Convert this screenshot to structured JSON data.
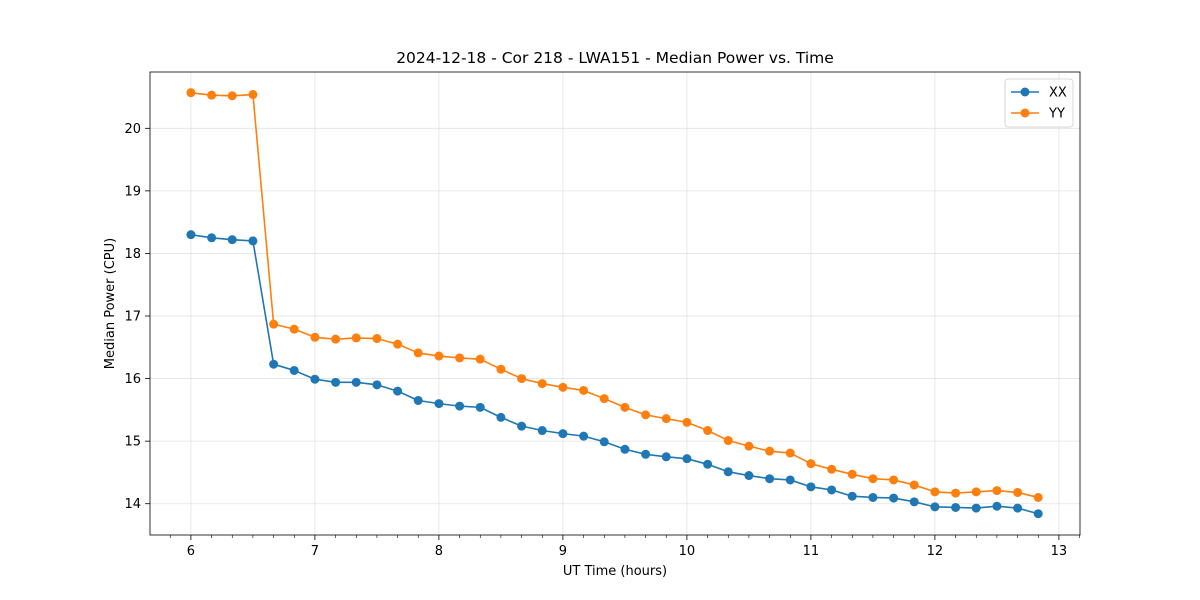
{
  "chart_data": {
    "type": "line",
    "title": "2024-12-18 - Cor 218 - LWA151 - Median Power vs. Time",
    "xlabel": "UT Time (hours)",
    "ylabel": "Median Power (CPU)",
    "xlim": [
      5.67,
      13.17
    ],
    "ylim": [
      13.5,
      20.9
    ],
    "xticks": [
      6,
      7,
      8,
      9,
      10,
      11,
      12,
      13
    ],
    "xtick_labels": [
      "6",
      "7",
      "8",
      "9",
      "10",
      "11",
      "12",
      "13"
    ],
    "yticks": [
      14,
      15,
      16,
      17,
      18,
      19,
      20
    ],
    "ytick_labels": [
      "14",
      "15",
      "16",
      "17",
      "18",
      "19",
      "20"
    ],
    "grid": true,
    "legend_position": "top-right",
    "x": [
      6.0,
      6.167,
      6.333,
      6.5,
      6.667,
      6.833,
      7.0,
      7.167,
      7.333,
      7.5,
      7.667,
      7.833,
      8.0,
      8.167,
      8.333,
      8.5,
      8.667,
      8.833,
      9.0,
      9.167,
      9.333,
      9.5,
      9.667,
      9.833,
      10.0,
      10.167,
      10.333,
      10.5,
      10.667,
      10.833,
      11.0,
      11.167,
      11.333,
      11.5,
      11.667,
      11.833,
      12.0,
      12.167,
      12.333,
      12.5,
      12.667,
      12.833
    ],
    "series": [
      {
        "name": "XX",
        "color": "#1f77b4",
        "values": [
          18.3,
          18.25,
          18.22,
          18.2,
          16.23,
          16.13,
          15.99,
          15.94,
          15.94,
          15.9,
          15.8,
          15.65,
          15.6,
          15.56,
          15.54,
          15.38,
          15.24,
          15.17,
          15.12,
          15.08,
          14.99,
          14.87,
          14.79,
          14.75,
          14.72,
          14.63,
          14.51,
          14.45,
          14.4,
          14.38,
          14.27,
          14.22,
          14.12,
          14.1,
          14.09,
          14.03,
          13.95,
          13.94,
          13.93,
          13.96,
          13.93,
          13.84
        ]
      },
      {
        "name": "YY",
        "color": "#ff7f0e",
        "values": [
          20.57,
          20.53,
          20.52,
          20.54,
          16.87,
          16.79,
          16.66,
          16.63,
          16.65,
          16.64,
          16.55,
          16.41,
          16.36,
          16.33,
          16.31,
          16.15,
          16.0,
          15.92,
          15.86,
          15.81,
          15.68,
          15.54,
          15.42,
          15.36,
          15.3,
          15.17,
          15.01,
          14.92,
          14.84,
          14.81,
          14.64,
          14.55,
          14.47,
          14.4,
          14.38,
          14.3,
          14.19,
          14.17,
          14.19,
          14.21,
          14.18,
          14.1
        ]
      }
    ]
  }
}
